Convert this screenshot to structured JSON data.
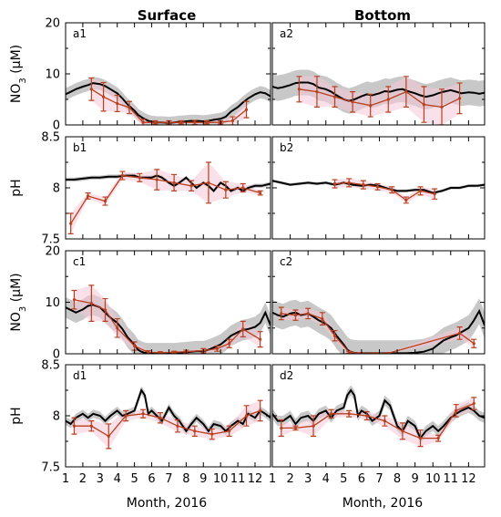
{
  "column_titles": [
    "Surface",
    "Bottom"
  ],
  "x_axis": {
    "label": "Month, 2016",
    "ticks": [
      "1",
      "2",
      "3",
      "4",
      "5",
      "6",
      "7",
      "8",
      "9",
      "10",
      "11",
      "12"
    ],
    "range": [
      1,
      12.9
    ]
  },
  "rows": [
    {
      "ylabel": "NO3 (μM)",
      "ylabel_main": "NO",
      "ylabel_sub": "3",
      "ylabel_rest": " (μM)",
      "ylim": [
        0,
        20
      ],
      "yticks": [
        "0",
        "10",
        "20"
      ],
      "ytick_values": [
        0,
        10,
        20
      ]
    },
    {
      "ylabel": "pH",
      "ylabel_main": "pH",
      "ylabel_sub": "",
      "ylabel_rest": "",
      "ylim": [
        7.5,
        8.5
      ],
      "yticks": [
        "7.5",
        "8",
        "8.5"
      ],
      "ytick_values": [
        7.5,
        8,
        8.5
      ]
    },
    {
      "ylabel": "NO3 (μM)",
      "ylabel_main": "NO",
      "ylabel_sub": "3",
      "ylabel_rest": " (μM)",
      "ylim": [
        0,
        20
      ],
      "yticks": [
        "0",
        "10",
        "20"
      ],
      "ytick_values": [
        0,
        10,
        20
      ]
    },
    {
      "ylabel": "pH",
      "ylabel_main": "pH",
      "ylabel_sub": "",
      "ylabel_rest": "",
      "ylim": [
        7.5,
        8.5
      ],
      "yticks": [
        "7.5",
        "8",
        "8.5"
      ],
      "ytick_values": [
        7.5,
        8,
        8.5
      ]
    }
  ],
  "colors": {
    "sensor_line": "#000000",
    "sensor_band": "#c8c8c8",
    "sample_line": "#b8401e",
    "sample_band": "#f5c6d6"
  },
  "chart_data": [
    {
      "panel": "a1",
      "type": "line",
      "ylim": [
        0,
        20
      ],
      "series": [
        {
          "x": [
            1,
            1.3,
            1.6,
            2,
            2.3,
            2.6,
            3,
            3.3,
            3.6,
            4,
            4.3,
            4.6,
            5,
            5.2,
            5.5,
            5.8,
            6,
            6.3,
            6.6,
            7,
            7.3,
            7.6,
            8,
            8.3,
            8.6,
            9,
            9.3,
            9.6,
            10,
            10.3,
            10.6,
            11,
            11.3,
            11.6,
            12,
            12.3,
            12.6,
            12.9
          ],
          "y": [
            6,
            6.5,
            7,
            7.5,
            7.8,
            8.2,
            8,
            7.6,
            7,
            6.2,
            5.2,
            4,
            2.8,
            2,
            1.3,
            0.8,
            0.6,
            0.5,
            0.5,
            0.4,
            0.5,
            0.6,
            0.7,
            0.8,
            0.8,
            0.7,
            0.8,
            1,
            1.2,
            1.6,
            2.6,
            3.5,
            4.4,
            5.2,
            6,
            6.4,
            6.2,
            5.6
          ],
          "band": 1.2
        },
        {
          "x": [
            2.5,
            3.2,
            4,
            4.7,
            5.5,
            6.2,
            7,
            7.7,
            8.5,
            9.2,
            10,
            10.7,
            11.5
          ],
          "y": [
            7,
            5.5,
            4.2,
            3.4,
            0.5,
            0.5,
            0.5,
            0.5,
            0.5,
            0.5,
            0.5,
            0.8,
            3
          ],
          "err": [
            2.2,
            2.8,
            1.6,
            1.2,
            0.6,
            0.3,
            0.3,
            0.3,
            0.4,
            0.3,
            0.3,
            0.8,
            1.6
          ]
        }
      ]
    },
    {
      "panel": "a2",
      "type": "line",
      "ylim": [
        0,
        20
      ],
      "series": [
        {
          "x": [
            1,
            1.3,
            1.6,
            2,
            2.3,
            2.6,
            3,
            3.3,
            3.6,
            4,
            4.3,
            4.6,
            5,
            5.3,
            5.6,
            6,
            6.3,
            6.6,
            7,
            7.3,
            7.6,
            8,
            8.3,
            8.6,
            9,
            9.3,
            9.6,
            10,
            10.3,
            10.6,
            11,
            11.3,
            11.6,
            12,
            12.3,
            12.6,
            12.9
          ],
          "y": [
            7.5,
            7.2,
            7.4,
            7.8,
            8.2,
            8.3,
            8.3,
            8,
            7.3,
            7,
            6.5,
            5.8,
            5,
            4.7,
            5,
            5.6,
            6,
            5.8,
            6.2,
            6.6,
            6.5,
            6.9,
            7,
            6.6,
            6.2,
            5.8,
            5.5,
            5.8,
            6.2,
            6.5,
            6.8,
            6.5,
            6.2,
            6.4,
            6.3,
            6.1,
            6.3
          ],
          "band": 2.5
        },
        {
          "x": [
            2.5,
            3.5,
            4.5,
            5.5,
            6.5,
            7.5,
            8.5,
            9.5,
            10.5,
            11.5
          ],
          "y": [
            7,
            6.5,
            5.5,
            4.5,
            3.8,
            5,
            6.5,
            4,
            3.5,
            5.2
          ],
          "err": [
            2.5,
            3,
            2,
            2,
            2.2,
            2.5,
            3,
            3.5,
            3.5,
            3
          ]
        }
      ]
    },
    {
      "panel": "b1",
      "type": "line",
      "ylim": [
        7.5,
        8.5
      ],
      "series": [
        {
          "x": [
            1,
            1.5,
            2,
            2.5,
            3,
            3.5,
            4,
            4.5,
            5,
            5.3,
            5.6,
            6,
            6.3,
            6.6,
            7,
            7.3,
            7.6,
            8,
            8.3,
            8.6,
            9,
            9.3,
            9.6,
            10,
            10.3,
            10.6,
            11,
            11.3,
            11.6,
            12,
            12.4,
            12.9
          ],
          "y": [
            8.08,
            8.08,
            8.09,
            8.1,
            8.1,
            8.11,
            8.11,
            8.12,
            8.12,
            8.1,
            8.1,
            8.1,
            8.12,
            8.1,
            8.05,
            8.02,
            8.05,
            8.1,
            8.05,
            8.0,
            8.05,
            8.02,
            7.97,
            8.05,
            8.02,
            7.97,
            8.0,
            7.97,
            8.0,
            8.02,
            8.02,
            8.04
          ],
          "band": 0.02
        },
        {
          "x": [
            1.3,
            2.3,
            3.3,
            4.3,
            5.3,
            6.3,
            7.3,
            8.3,
            9.3,
            10.3,
            11.3,
            12.3
          ],
          "y": [
            7.65,
            7.92,
            7.87,
            8.12,
            8.1,
            8.08,
            8.05,
            8.02,
            8.05,
            7.98,
            8.0,
            7.95
          ],
          "err": [
            0.1,
            0.03,
            0.04,
            0.04,
            0.04,
            0.1,
            0.08,
            0.05,
            0.2,
            0.08,
            0.04,
            0.02
          ]
        }
      ]
    },
    {
      "panel": "b2",
      "type": "line",
      "ylim": [
        7.5,
        8.5
      ],
      "series": [
        {
          "x": [
            1,
            1.5,
            2,
            2.5,
            3,
            3.5,
            4,
            4.5,
            5,
            5.5,
            6,
            6.5,
            7,
            7.5,
            8,
            8.5,
            9,
            9.5,
            10,
            10.5,
            11,
            11.5,
            12,
            12.5,
            12.9
          ],
          "y": [
            8.07,
            8.05,
            8.03,
            8.04,
            8.05,
            8.04,
            8.05,
            8.03,
            8.05,
            8.03,
            8.02,
            8.03,
            8.02,
            7.99,
            7.97,
            7.97,
            7.98,
            7.98,
            7.95,
            7.97,
            8.0,
            8.0,
            8.02,
            8.02,
            8.03
          ],
          "band": 0.015
        },
        {
          "x": [
            4.5,
            5.3,
            6.1,
            6.9,
            7.7,
            8.5,
            9.3,
            10.1
          ],
          "y": [
            8.04,
            8.05,
            8.03,
            8.01,
            7.98,
            7.88,
            7.97,
            7.94
          ],
          "err": [
            0.04,
            0.04,
            0.04,
            0.03,
            0.03,
            0.03,
            0.04,
            0.05
          ]
        }
      ]
    },
    {
      "panel": "c1",
      "type": "line",
      "ylim": [
        0,
        20
      ],
      "series": [
        {
          "x": [
            1,
            1.3,
            1.6,
            2,
            2.3,
            2.6,
            3,
            3.3,
            3.6,
            4,
            4.3,
            4.6,
            5,
            5.2,
            5.4,
            5.6,
            5.8,
            6,
            6.3,
            6.6,
            7,
            7.3,
            7.6,
            8,
            8.3,
            8.6,
            9,
            9.3,
            9.6,
            10,
            10.3,
            10.6,
            11,
            11.3,
            11.6,
            12,
            12.3,
            12.6,
            12.9
          ],
          "y": [
            9,
            8.5,
            8,
            8.6,
            9.3,
            9.5,
            9,
            8,
            7,
            6,
            4.8,
            3.2,
            1.8,
            0.8,
            0.4,
            0.2,
            0.1,
            0.1,
            0.1,
            0.1,
            0.1,
            0.1,
            0.2,
            0.3,
            0.4,
            0.5,
            0.5,
            0.8,
            1.2,
            1.8,
            2.6,
            3.5,
            4.2,
            4.6,
            4.8,
            5.2,
            6,
            8,
            5.5
          ],
          "band": 2
        },
        {
          "x": [
            1.5,
            2.5,
            3.3,
            4,
            5,
            5.8,
            6.5,
            7.3,
            8,
            9,
            9.8,
            10.5,
            11.3,
            12.3
          ],
          "y": [
            10.5,
            9.8,
            8.5,
            5,
            1.5,
            0.3,
            0.2,
            0.3,
            0.4,
            0.6,
            1,
            2,
            4.8,
            2.8
          ],
          "err": [
            1.8,
            3.5,
            2.2,
            1.8,
            0.8,
            0.3,
            0.2,
            0.2,
            0.3,
            0.4,
            0.5,
            0.8,
            1.5,
            1.5
          ]
        }
      ]
    },
    {
      "panel": "c2",
      "type": "line",
      "ylim": [
        0,
        20
      ],
      "series": [
        {
          "x": [
            1,
            1.3,
            1.6,
            2,
            2.3,
            2.6,
            3,
            3.3,
            3.6,
            4,
            4.3,
            4.6,
            5,
            5.2,
            5.4,
            5.6,
            5.8,
            6,
            6.3,
            6.6,
            7,
            7.5,
            8,
            8.5,
            9,
            9.5,
            10,
            10.3,
            10.6,
            11,
            11.3,
            11.6,
            12,
            12.3,
            12.6,
            12.9
          ],
          "y": [
            8,
            7.5,
            7.2,
            7.8,
            8,
            7.5,
            7.8,
            7.2,
            6.5,
            5.8,
            5,
            3.5,
            1.8,
            0.8,
            0.3,
            0.2,
            0.1,
            0.1,
            0.1,
            0.1,
            0.1,
            0.1,
            0.1,
            0.1,
            0.2,
            0.4,
            1,
            1.8,
            2.6,
            3.2,
            3.6,
            4.2,
            5,
            6.5,
            8.3,
            5.5
          ],
          "band": 2.5
        },
        {
          "x": [
            1.5,
            2.3,
            3,
            3.8,
            4.5,
            5.3,
            6,
            6.8,
            7.5,
            11.5,
            12.3
          ],
          "y": [
            7.8,
            7.5,
            7.8,
            6.8,
            3.5,
            0.3,
            0.1,
            0.1,
            0.1,
            4,
            2
          ],
          "err": [
            1.2,
            1,
            1,
            1.2,
            1,
            0.2,
            0.1,
            0.1,
            0.1,
            1.2,
            0.8
          ]
        }
      ]
    },
    {
      "panel": "d1",
      "type": "line",
      "ylim": [
        7.5,
        8.5
      ],
      "series": [
        {
          "x": [
            1,
            1.3,
            1.6,
            2,
            2.3,
            2.6,
            3,
            3.3,
            3.6,
            4,
            4.3,
            4.6,
            5,
            5.2,
            5.4,
            5.6,
            5.8,
            6,
            6.3,
            6.6,
            7,
            7.3,
            7.6,
            8,
            8.3,
            8.6,
            9,
            9.3,
            9.6,
            10,
            10.3,
            10.6,
            11,
            11.3,
            11.6,
            12,
            12.3,
            12.6,
            12.9
          ],
          "y": [
            7.95,
            7.92,
            7.98,
            8.02,
            7.98,
            8.02,
            8.0,
            7.95,
            8.0,
            8.05,
            8.0,
            8.02,
            8.05,
            8.15,
            8.25,
            8.2,
            8.02,
            8.05,
            8.0,
            7.95,
            8.08,
            8.0,
            7.95,
            7.85,
            7.92,
            7.98,
            7.92,
            7.85,
            7.92,
            7.9,
            7.85,
            7.9,
            7.95,
            7.92,
            8.02,
            7.98,
            8.05,
            8.02,
            7.98
          ],
          "band": 0.04
        },
        {
          "x": [
            1.5,
            2.5,
            3.5,
            4.5,
            5.5,
            6.5,
            7.5,
            8.5,
            9.5,
            10.5,
            11.5,
            12.3
          ],
          "y": [
            7.9,
            7.9,
            7.8,
            8.0,
            8.02,
            7.98,
            7.9,
            7.85,
            7.82,
            7.85,
            8.0,
            8.05
          ],
          "err": [
            0.08,
            0.05,
            0.12,
            0.05,
            0.04,
            0.05,
            0.06,
            0.05,
            0.05,
            0.05,
            0.1,
            0.1
          ]
        }
      ]
    },
    {
      "panel": "d2",
      "type": "line",
      "ylim": [
        7.5,
        8.5
      ],
      "series": [
        {
          "x": [
            1,
            1.3,
            1.6,
            2,
            2.3,
            2.6,
            3,
            3.3,
            3.6,
            4,
            4.3,
            4.6,
            5,
            5.2,
            5.4,
            5.6,
            5.8,
            6,
            6.3,
            6.6,
            7,
            7.3,
            7.6,
            8,
            8.3,
            8.6,
            9,
            9.3,
            9.6,
            10,
            10.3,
            10.6,
            11,
            11.3,
            11.6,
            12,
            12.3,
            12.6,
            12.9
          ],
          "y": [
            8.02,
            7.95,
            7.95,
            8.0,
            7.92,
            7.98,
            8.0,
            7.95,
            8.02,
            8.05,
            7.98,
            8.05,
            8.08,
            8.2,
            8.25,
            8.2,
            8.0,
            8.05,
            8.02,
            7.95,
            8.0,
            8.15,
            8.1,
            7.9,
            7.85,
            7.95,
            7.9,
            7.78,
            7.85,
            7.9,
            7.85,
            7.9,
            7.98,
            8.02,
            8.05,
            8.08,
            8.05,
            8.0,
            7.98
          ],
          "band": 0.05
        },
        {
          "x": [
            1.5,
            2.3,
            3.3,
            4.3,
            5.3,
            6.3,
            7.3,
            8.3,
            9.3,
            10.3,
            11.3,
            12.3
          ],
          "y": [
            7.88,
            7.88,
            7.9,
            8.02,
            8.02,
            8.0,
            7.95,
            7.85,
            7.78,
            7.78,
            8.05,
            8.12
          ],
          "err": [
            0.08,
            0.02,
            0.1,
            0.04,
            0.03,
            0.04,
            0.05,
            0.08,
            0.08,
            0.03,
            0.06,
            0.06
          ]
        }
      ]
    }
  ]
}
